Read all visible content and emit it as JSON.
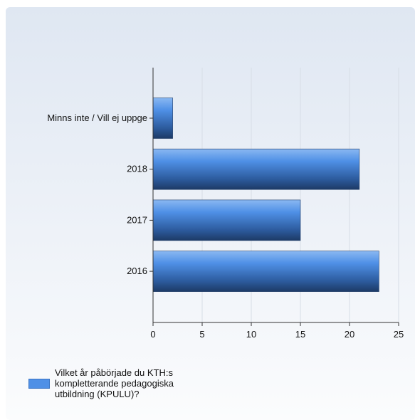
{
  "chart_data": {
    "type": "bar",
    "orientation": "horizontal",
    "categories": [
      "Minns inte / Vill ej uppge",
      "2018",
      "2017",
      "2016"
    ],
    "series": [
      {
        "name": "Vilket år påbörjade du KTH:s kompletterande pedagogiska utbildning (KPULU)?",
        "values": [
          2,
          21,
          15,
          23
        ]
      }
    ],
    "xlim": [
      0,
      25
    ],
    "xticks": [
      0,
      5,
      10,
      15,
      20,
      25
    ],
    "grid": true,
    "legend_position": "bottom-left",
    "bar_color": "#4f90e6"
  }
}
